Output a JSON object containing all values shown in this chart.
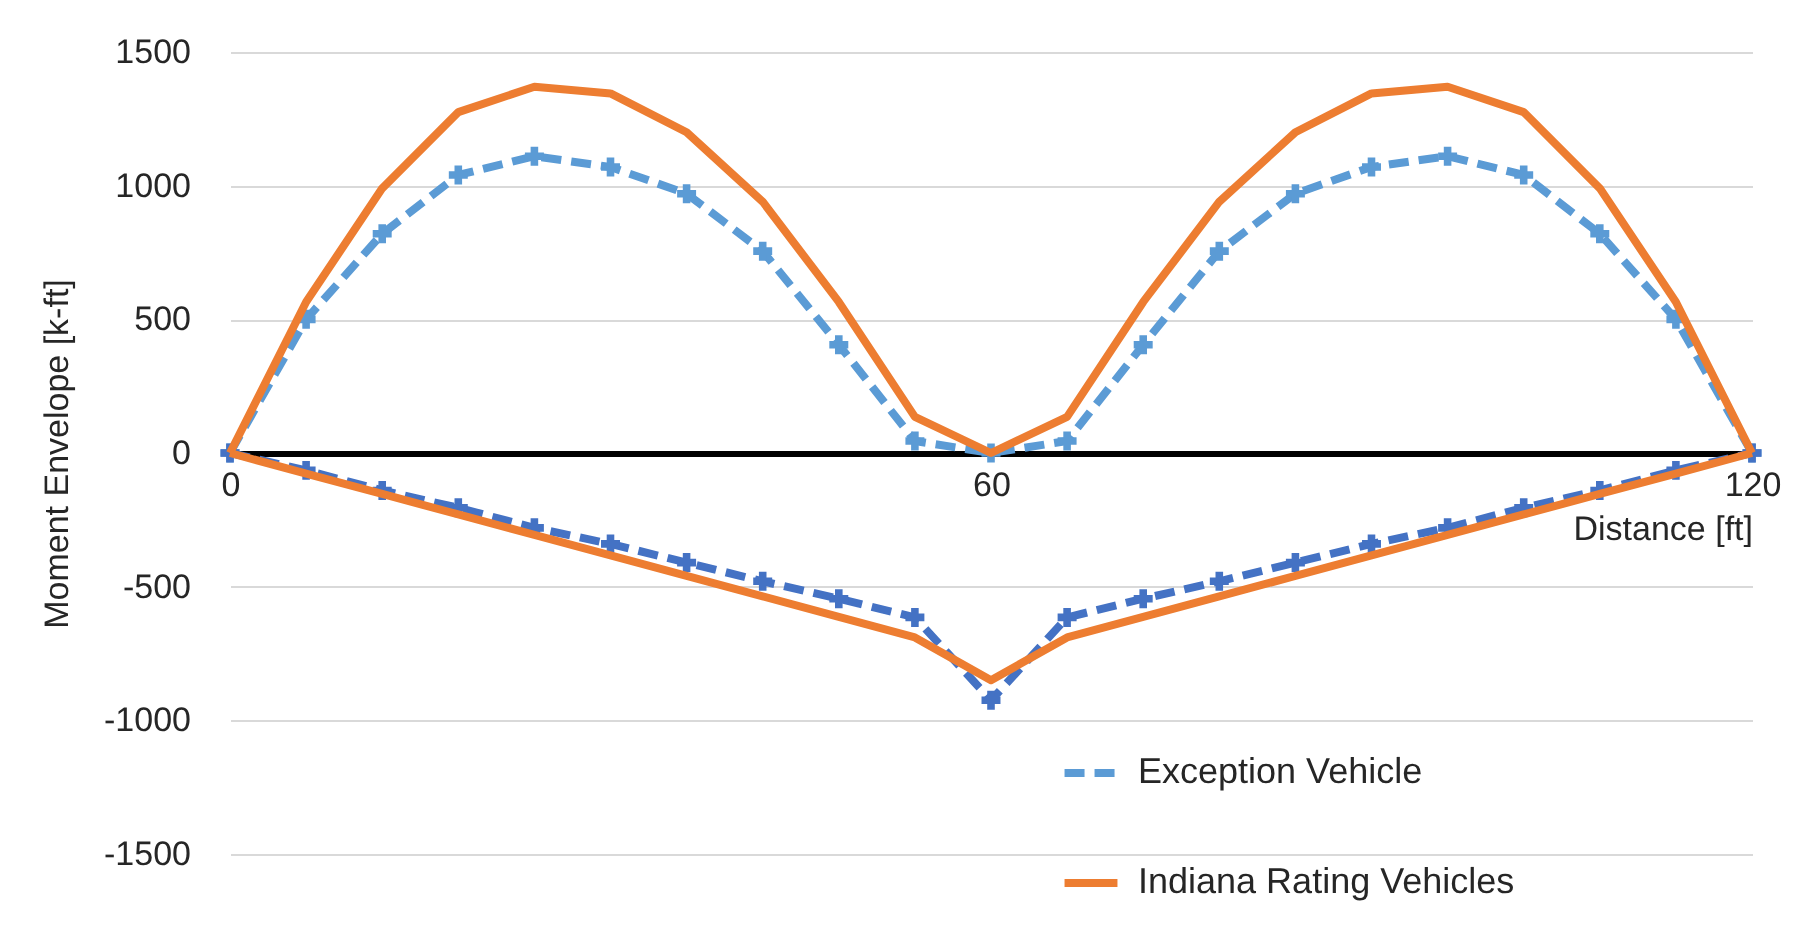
{
  "chart_data": {
    "type": "line",
    "xlabel": "Distance [ft]",
    "ylabel": "Moment Envelope [k-ft]",
    "x": [
      0,
      6,
      12,
      18,
      24,
      30,
      36,
      42,
      48,
      54,
      60,
      66,
      72,
      78,
      84,
      90,
      96,
      102,
      108,
      114,
      120
    ],
    "xlim": [
      0,
      120
    ],
    "xticks": [
      0,
      60,
      120
    ],
    "ylim": [
      -1500,
      1500
    ],
    "yticks": [
      -1500,
      -1000,
      -500,
      0,
      500,
      1000,
      1500
    ],
    "grid": "y",
    "legend": "bottom right",
    "series": [
      {
        "name": "Exception Vehicle",
        "color": "#5b9bd5",
        "marker": "cross",
        "line_style": "dashed",
        "values": [
          0,
          500,
          820,
          1040,
          1110,
          1070,
          970,
          755,
          405,
          45,
          0,
          45,
          405,
          755,
          970,
          1070,
          1110,
          1040,
          820,
          500,
          0
        ]
      },
      {
        "color": "#4472c4",
        "marker": "cross",
        "line_style": "dashed",
        "values": [
          0,
          -65,
          -140,
          -205,
          -280,
          -340,
          -410,
          -480,
          -545,
          -615,
          -925,
          -615,
          -545,
          -480,
          -410,
          -340,
          -280,
          -205,
          -140,
          -65,
          0
        ]
      },
      {
        "name": "Indiana Rating Vehicles",
        "color": "#ed7d31",
        "marker": "none",
        "line_style": "solid",
        "values": [
          0,
          565,
          990,
          1275,
          1370,
          1345,
          1200,
          940,
          565,
          135,
          0,
          135,
          565,
          940,
          1200,
          1345,
          1370,
          1275,
          990,
          565,
          0
        ]
      },
      {
        "color": "#ed7d31",
        "marker": "none",
        "line_style": "solid",
        "values": [
          0,
          -77,
          -153,
          -230,
          -306,
          -383,
          -460,
          -536,
          -613,
          -690,
          -850,
          -690,
          -613,
          -536,
          -460,
          -383,
          -306,
          -230,
          -153,
          -77,
          0
        ]
      }
    ]
  }
}
